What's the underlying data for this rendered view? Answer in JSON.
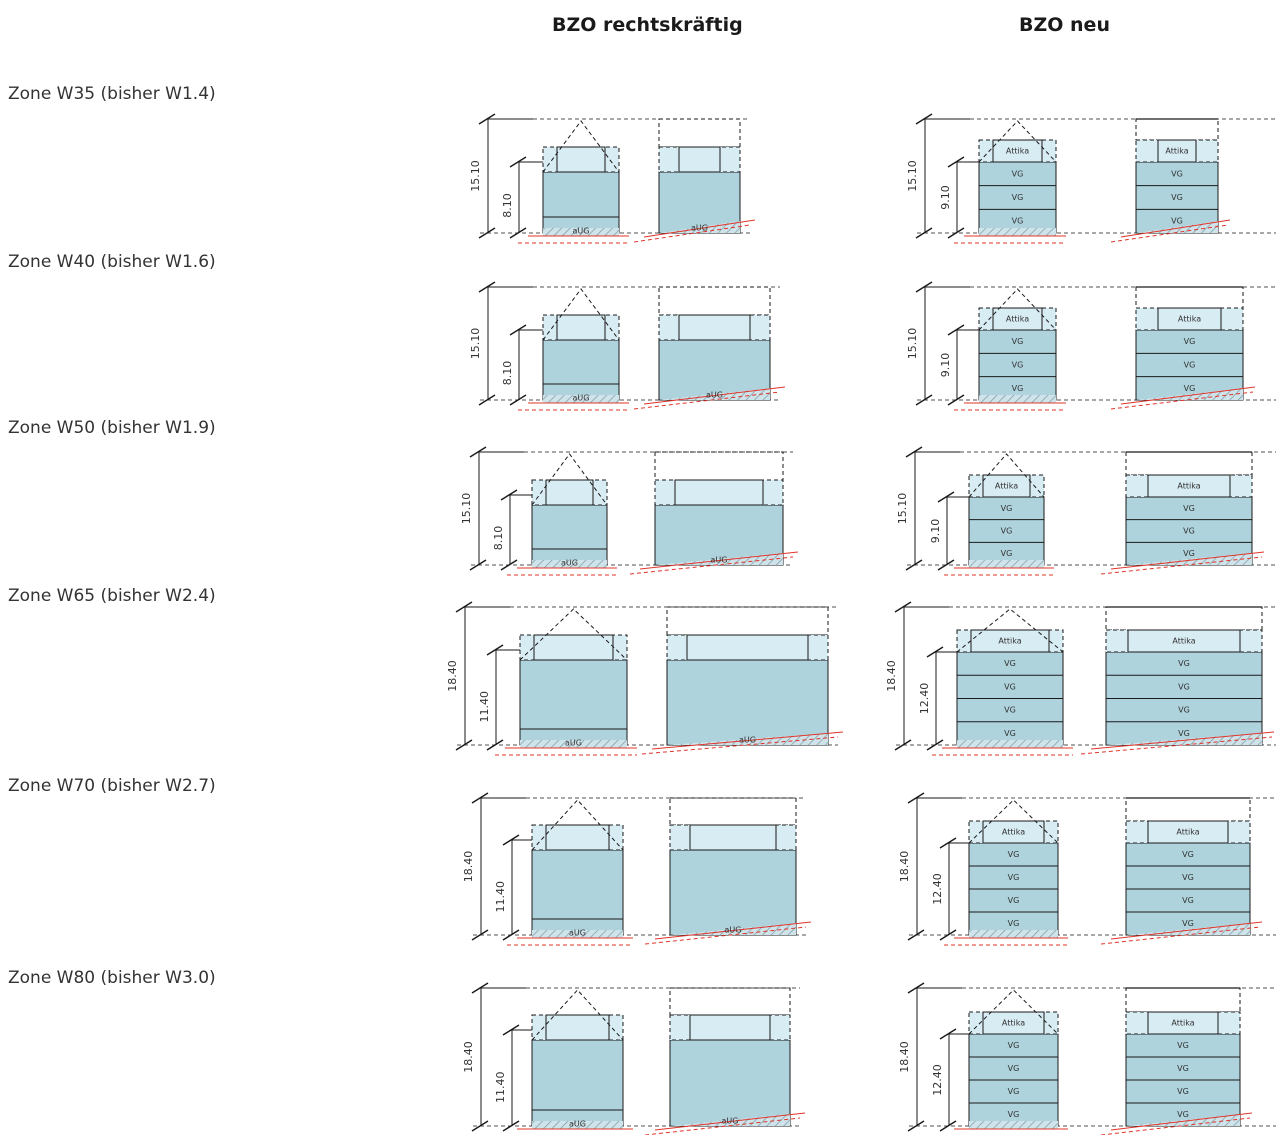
{
  "headers": {
    "current": "BZO rechtskräftig",
    "new": "BZO neu"
  },
  "labels": {
    "attika": "Attika",
    "vg": "VG",
    "aug": "aUG"
  },
  "zones": [
    {
      "name": "Zone W35 (bisher W1.4)",
      "old_total": "15.10",
      "old_eave": "8.10",
      "new_total": "15.10",
      "new_eave": "9.10",
      "new_floors": 3
    },
    {
      "name": "Zone W40 (bisher W1.6)",
      "old_total": "15.10",
      "old_eave": "8.10",
      "new_total": "15.10",
      "new_eave": "9.10",
      "new_floors": 3
    },
    {
      "name": "Zone W50 (bisher W1.9)",
      "old_total": "15.10",
      "old_eave": "8.10",
      "new_total": "15.10",
      "new_eave": "9.10",
      "new_floors": 3
    },
    {
      "name": "Zone W65 (bisher W2.4)",
      "old_total": "18.40",
      "old_eave": "11.40",
      "new_total": "18.40",
      "new_eave": "12.40",
      "new_floors": 4
    },
    {
      "name": "Zone W70 (bisher W2.7)",
      "old_total": "18.40",
      "old_eave": "11.40",
      "new_total": "18.40",
      "new_eave": "12.40",
      "new_floors": 4
    },
    {
      "name": "Zone W80 (bisher W3.0)",
      "old_total": "18.40",
      "old_eave": "11.40",
      "new_total": "18.40",
      "new_eave": "12.40",
      "new_floors": 4
    }
  ],
  "colors": {
    "fill": "#aed3dc",
    "light": "#d8ecf3",
    "line": "#1a1a1a",
    "red": "#e0342a",
    "hatch": "#7a9aa3"
  }
}
